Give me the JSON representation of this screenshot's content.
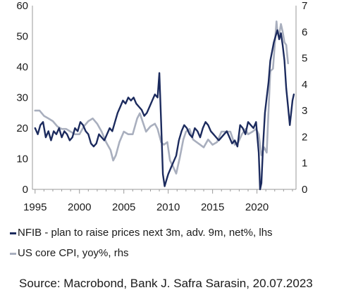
{
  "chart_data": {
    "type": "line",
    "title": "",
    "xlabel": "",
    "x_tick_labels": [
      "1995",
      "2000",
      "2005",
      "2010",
      "2015",
      "2020"
    ],
    "xlim": [
      1994.7,
      2024.4
    ],
    "y_left": {
      "ticks": [
        "0",
        "10",
        "20",
        "30",
        "40",
        "50",
        "60"
      ],
      "ylim": [
        0,
        60
      ]
    },
    "y_right": {
      "ticks": [
        "0",
        "1",
        "2",
        "3",
        "4",
        "5",
        "6",
        "7"
      ],
      "ylim": [
        0,
        7
      ]
    },
    "grid": false,
    "legend_position": "bottom",
    "series": [
      {
        "name": "NFIB - plan to raise prices next 3m, adv. 9m, net%, lhs",
        "axis": "left",
        "color": "#1c2b5e",
        "points": [
          [
            1995.0,
            20
          ],
          [
            1995.3,
            18
          ],
          [
            1995.6,
            21
          ],
          [
            1995.9,
            22
          ],
          [
            1996.2,
            17
          ],
          [
            1996.5,
            19
          ],
          [
            1996.8,
            16
          ],
          [
            1997.1,
            19
          ],
          [
            1997.4,
            18
          ],
          [
            1997.7,
            20
          ],
          [
            1998.0,
            17
          ],
          [
            1998.3,
            19
          ],
          [
            1998.6,
            18
          ],
          [
            1998.9,
            16
          ],
          [
            1999.2,
            17
          ],
          [
            1999.5,
            20
          ],
          [
            1999.8,
            19
          ],
          [
            2000.1,
            22
          ],
          [
            2000.4,
            21
          ],
          [
            2000.7,
            19
          ],
          [
            2001.0,
            18
          ],
          [
            2001.3,
            15
          ],
          [
            2001.6,
            14
          ],
          [
            2001.9,
            15
          ],
          [
            2002.2,
            18
          ],
          [
            2002.5,
            17
          ],
          [
            2002.8,
            16
          ],
          [
            2003.1,
            18
          ],
          [
            2003.4,
            20
          ],
          [
            2003.7,
            19
          ],
          [
            2004.0,
            22
          ],
          [
            2004.3,
            25
          ],
          [
            2004.6,
            27
          ],
          [
            2004.9,
            29
          ],
          [
            2005.2,
            28
          ],
          [
            2005.5,
            30
          ],
          [
            2005.8,
            29
          ],
          [
            2006.1,
            30
          ],
          [
            2006.4,
            28
          ],
          [
            2006.7,
            27
          ],
          [
            2007.0,
            26
          ],
          [
            2007.3,
            24
          ],
          [
            2007.6,
            25
          ],
          [
            2007.9,
            27
          ],
          [
            2008.2,
            29
          ],
          [
            2008.5,
            31
          ],
          [
            2008.8,
            30
          ],
          [
            2009.0,
            38
          ],
          [
            2009.2,
            22
          ],
          [
            2009.4,
            5
          ],
          [
            2009.6,
            1
          ],
          [
            2009.8,
            3
          ],
          [
            2010.0,
            5
          ],
          [
            2010.3,
            7
          ],
          [
            2010.6,
            9
          ],
          [
            2010.9,
            11
          ],
          [
            2011.2,
            16
          ],
          [
            2011.5,
            19
          ],
          [
            2011.8,
            21
          ],
          [
            2012.1,
            20
          ],
          [
            2012.4,
            18
          ],
          [
            2012.7,
            17
          ],
          [
            2013.0,
            20
          ],
          [
            2013.3,
            19
          ],
          [
            2013.6,
            17
          ],
          [
            2013.9,
            20
          ],
          [
            2014.2,
            22
          ],
          [
            2014.5,
            21
          ],
          [
            2014.8,
            19
          ],
          [
            2015.1,
            18
          ],
          [
            2015.4,
            17
          ],
          [
            2015.7,
            16
          ],
          [
            2016.0,
            17
          ],
          [
            2016.3,
            18
          ],
          [
            2016.6,
            19
          ],
          [
            2016.9,
            17
          ],
          [
            2017.2,
            15
          ],
          [
            2017.5,
            16
          ],
          [
            2017.8,
            14
          ],
          [
            2018.1,
            21
          ],
          [
            2018.4,
            20
          ],
          [
            2018.7,
            18
          ],
          [
            2019.0,
            22
          ],
          [
            2019.3,
            21
          ],
          [
            2019.6,
            20
          ],
          [
            2019.9,
            22
          ],
          [
            2020.2,
            12
          ],
          [
            2020.35,
            0
          ],
          [
            2020.5,
            2
          ],
          [
            2020.7,
            15
          ],
          [
            2020.9,
            25
          ],
          [
            2021.1,
            30
          ],
          [
            2021.3,
            35
          ],
          [
            2021.5,
            42
          ],
          [
            2021.7,
            45
          ],
          [
            2021.9,
            48
          ],
          [
            2022.1,
            50
          ],
          [
            2022.3,
            52
          ],
          [
            2022.5,
            49
          ],
          [
            2022.7,
            51
          ],
          [
            2022.9,
            47
          ],
          [
            2023.1,
            42
          ],
          [
            2023.3,
            33
          ],
          [
            2023.5,
            27
          ],
          [
            2023.7,
            21
          ],
          [
            2023.85,
            25
          ],
          [
            2024.0,
            29
          ],
          [
            2024.15,
            31
          ]
        ]
      },
      {
        "name": "US core CPI, yoy%, rhs",
        "axis": "right",
        "color": "#a9afbe",
        "points": [
          [
            1995.0,
            3.0
          ],
          [
            1995.5,
            3.0
          ],
          [
            1996.0,
            2.8
          ],
          [
            1996.5,
            2.7
          ],
          [
            1997.0,
            2.6
          ],
          [
            1997.5,
            2.4
          ],
          [
            1998.0,
            2.3
          ],
          [
            1998.5,
            2.3
          ],
          [
            1999.0,
            2.2
          ],
          [
            1999.5,
            2.1
          ],
          [
            2000.0,
            2.1
          ],
          [
            2000.5,
            2.4
          ],
          [
            2001.0,
            2.6
          ],
          [
            2001.5,
            2.7
          ],
          [
            2002.0,
            2.5
          ],
          [
            2002.5,
            2.2
          ],
          [
            2003.0,
            1.8
          ],
          [
            2003.5,
            1.5
          ],
          [
            2003.8,
            1.1
          ],
          [
            2004.1,
            1.3
          ],
          [
            2004.5,
            1.8
          ],
          [
            2005.0,
            2.2
          ],
          [
            2005.5,
            2.1
          ],
          [
            2006.0,
            2.1
          ],
          [
            2006.5,
            2.7
          ],
          [
            2006.8,
            2.9
          ],
          [
            2007.0,
            2.7
          ],
          [
            2007.5,
            2.2
          ],
          [
            2008.0,
            2.4
          ],
          [
            2008.5,
            2.5
          ],
          [
            2008.8,
            2.3
          ],
          [
            2009.2,
            1.8
          ],
          [
            2009.5,
            1.7
          ],
          [
            2009.9,
            1.8
          ],
          [
            2010.2,
            1.1
          ],
          [
            2010.5,
            0.9
          ],
          [
            2010.9,
            0.6
          ],
          [
            2011.3,
            1.2
          ],
          [
            2011.7,
            1.9
          ],
          [
            2012.0,
            2.2
          ],
          [
            2012.4,
            2.3
          ],
          [
            2012.8,
            1.9
          ],
          [
            2013.2,
            1.8
          ],
          [
            2013.6,
            1.7
          ],
          [
            2014.0,
            1.6
          ],
          [
            2014.5,
            1.9
          ],
          [
            2015.0,
            1.7
          ],
          [
            2015.5,
            1.8
          ],
          [
            2016.0,
            2.2
          ],
          [
            2016.5,
            2.2
          ],
          [
            2017.0,
            2.2
          ],
          [
            2017.5,
            1.7
          ],
          [
            2017.9,
            1.8
          ],
          [
            2018.3,
            2.1
          ],
          [
            2018.7,
            2.3
          ],
          [
            2019.0,
            2.1
          ],
          [
            2019.5,
            2.2
          ],
          [
            2019.9,
            2.3
          ],
          [
            2020.2,
            2.1
          ],
          [
            2020.5,
            1.3
          ],
          [
            2020.8,
            1.6
          ],
          [
            2021.1,
            1.4
          ],
          [
            2021.3,
            3.0
          ],
          [
            2021.5,
            4.5
          ],
          [
            2021.8,
            4.6
          ],
          [
            2022.0,
            5.5
          ],
          [
            2022.2,
            6.4
          ],
          [
            2022.3,
            6.0
          ],
          [
            2022.5,
            5.9
          ],
          [
            2022.7,
            6.3
          ],
          [
            2022.9,
            6.0
          ],
          [
            2023.1,
            5.6
          ],
          [
            2023.3,
            5.5
          ],
          [
            2023.5,
            4.8
          ]
        ]
      }
    ]
  },
  "source": "Source: Macrobond, Bank J. Safra Sarasin, 20.07.2023"
}
